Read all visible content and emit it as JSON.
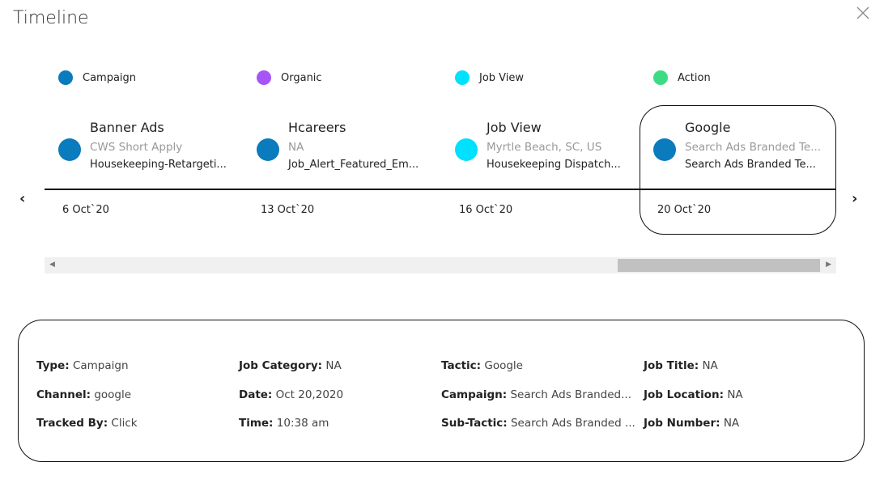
{
  "title": "Timeline",
  "legend": [
    {
      "label": "Campaign",
      "color": "#0a7bbd"
    },
    {
      "label": "Organic",
      "color": "#a855f7"
    },
    {
      "label": "Job View",
      "color": "#00e0ff"
    },
    {
      "label": "Action",
      "color": "#3ddc84"
    }
  ],
  "events": [
    {
      "title": "Banner Ads",
      "subtitle": "CWS Short Apply",
      "detail": "Housekeeping-Retargeti...",
      "date": "6 Oct`20",
      "color": "#0a7bbd"
    },
    {
      "title": "Hcareers",
      "subtitle": "NA",
      "detail": "Job_Alert_Featured_Em...",
      "date": "13 Oct`20",
      "color": "#0a7bbd"
    },
    {
      "title": "Job View",
      "subtitle": "Myrtle Beach, SC, US",
      "detail": "Housekeeping Dispatch...",
      "date": "16 Oct`20",
      "color": "#00e0ff"
    },
    {
      "title": "Google",
      "subtitle": "Search Ads Branded Te...",
      "detail": "Search Ads Branded Te...",
      "date": "20 Oct`20",
      "color": "#0a7bbd",
      "selected": true
    }
  ],
  "nav": {
    "prev": "‹",
    "next": "›"
  },
  "details": [
    {
      "label": "Type:",
      "value": "Campaign"
    },
    {
      "label": "Channel:",
      "value": "google"
    },
    {
      "label": "Tracked By:",
      "value": "Click"
    },
    {
      "label": "Job Category:",
      "value": "NA"
    },
    {
      "label": "Date:",
      "value": "Oct 20,2020"
    },
    {
      "label": "Time:",
      "value": "10:38 am"
    },
    {
      "label": "Tactic:",
      "value": "Google"
    },
    {
      "label": "Campaign:",
      "value": "Search Ads Branded..."
    },
    {
      "label": "Sub-Tactic:",
      "value": "Search Ads Branded ..."
    },
    {
      "label": "Job Title:",
      "value": "NA"
    },
    {
      "label": "Job Location:",
      "value": "NA"
    },
    {
      "label": "Job Number:",
      "value": "NA"
    }
  ]
}
